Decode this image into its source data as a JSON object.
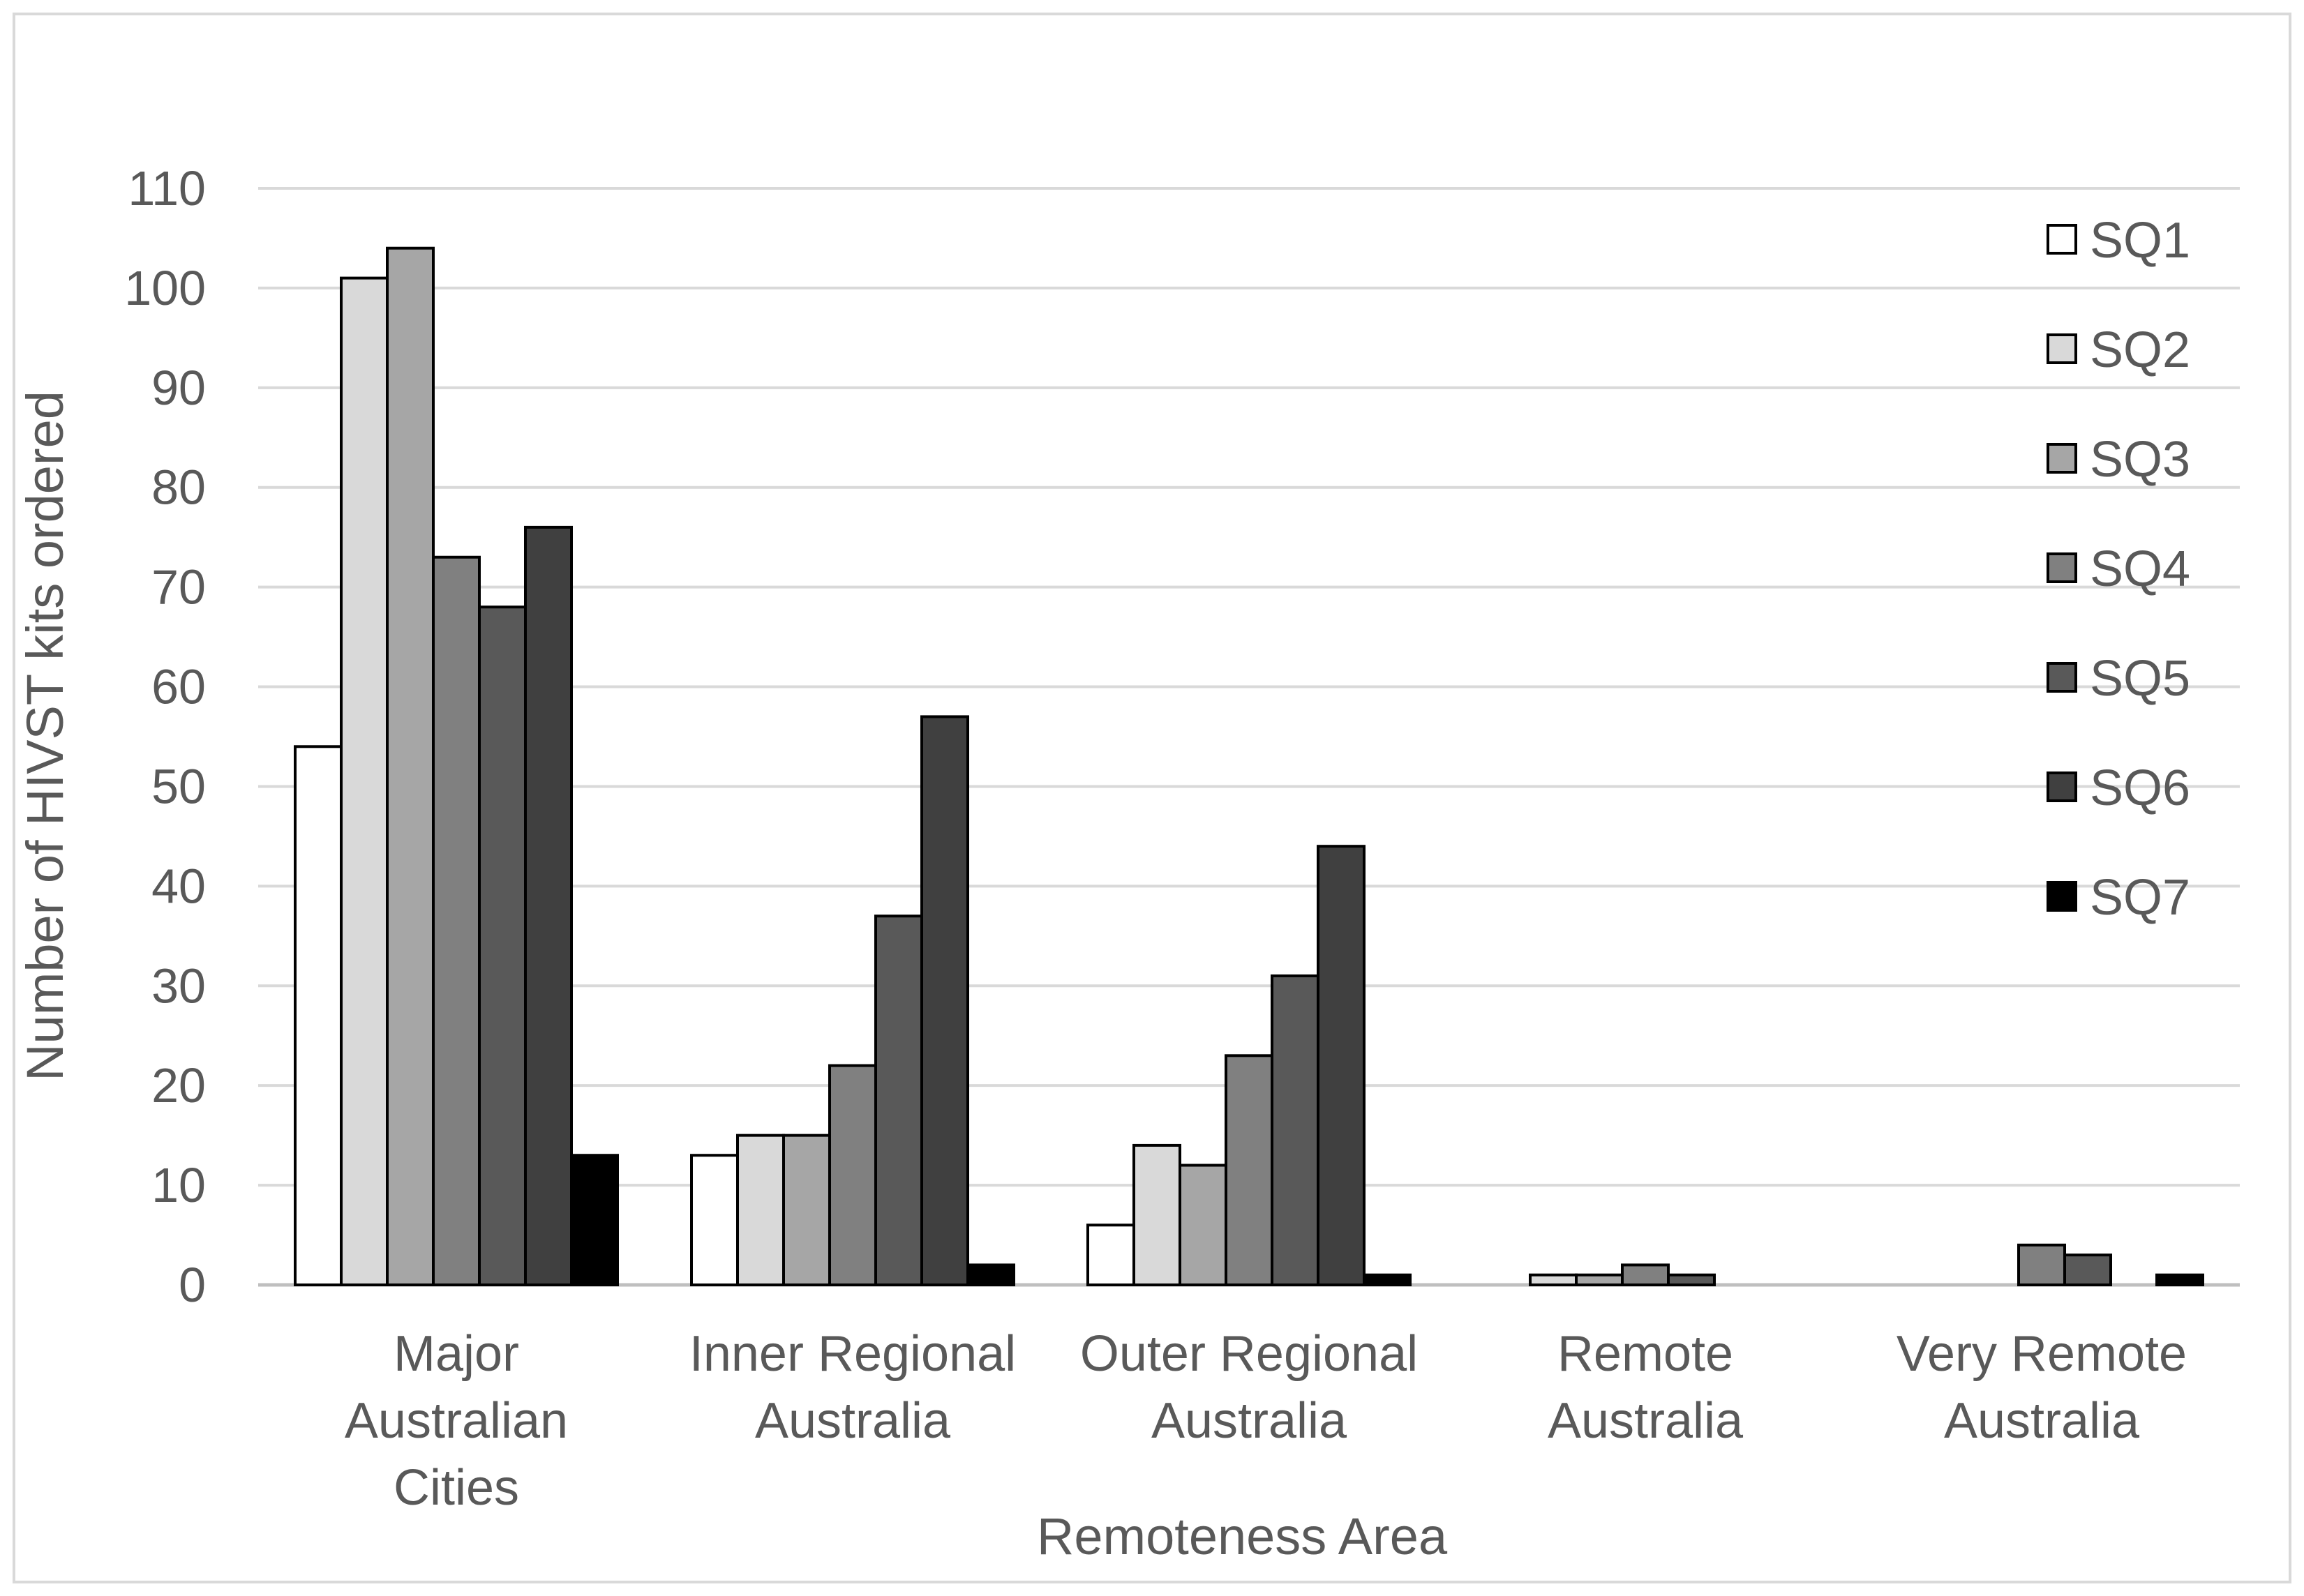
{
  "chart_data": {
    "type": "bar",
    "xlabel": "Remoteness Area",
    "ylabel": "Number of HIVST kits ordered",
    "ylim": [
      0,
      110
    ],
    "ytick_step": 10,
    "yticks": [
      "0",
      "10",
      "20",
      "30",
      "40",
      "50",
      "60",
      "70",
      "80",
      "90",
      "100",
      "110"
    ],
    "grid": true,
    "legend_position": "right",
    "categories": [
      [
        "Major",
        "Australian",
        "Cities"
      ],
      [
        "Inner Regional",
        "Australia"
      ],
      [
        "Outer Regional",
        "Australia"
      ],
      [
        "Remote",
        "Australia"
      ],
      [
        "Very Remote",
        "Australia"
      ]
    ],
    "series": [
      {
        "name": "SQ1",
        "color": "#ffffff",
        "values": [
          54,
          13,
          6,
          0,
          0
        ]
      },
      {
        "name": "SQ2",
        "color": "#d9d9d9",
        "values": [
          101,
          15,
          14,
          1,
          0
        ]
      },
      {
        "name": "SQ3",
        "color": "#a6a6a6",
        "values": [
          104,
          15,
          12,
          1,
          0
        ]
      },
      {
        "name": "SQ4",
        "color": "#808080",
        "values": [
          73,
          22,
          23,
          2,
          4
        ]
      },
      {
        "name": "SQ5",
        "color": "#595959",
        "values": [
          68,
          37,
          31,
          1,
          3
        ]
      },
      {
        "name": "SQ6",
        "color": "#404040",
        "values": [
          76,
          57,
          44,
          0,
          0
        ]
      },
      {
        "name": "SQ7",
        "color": "#000000",
        "values": [
          13,
          2,
          1,
          0,
          1
        ]
      }
    ]
  }
}
